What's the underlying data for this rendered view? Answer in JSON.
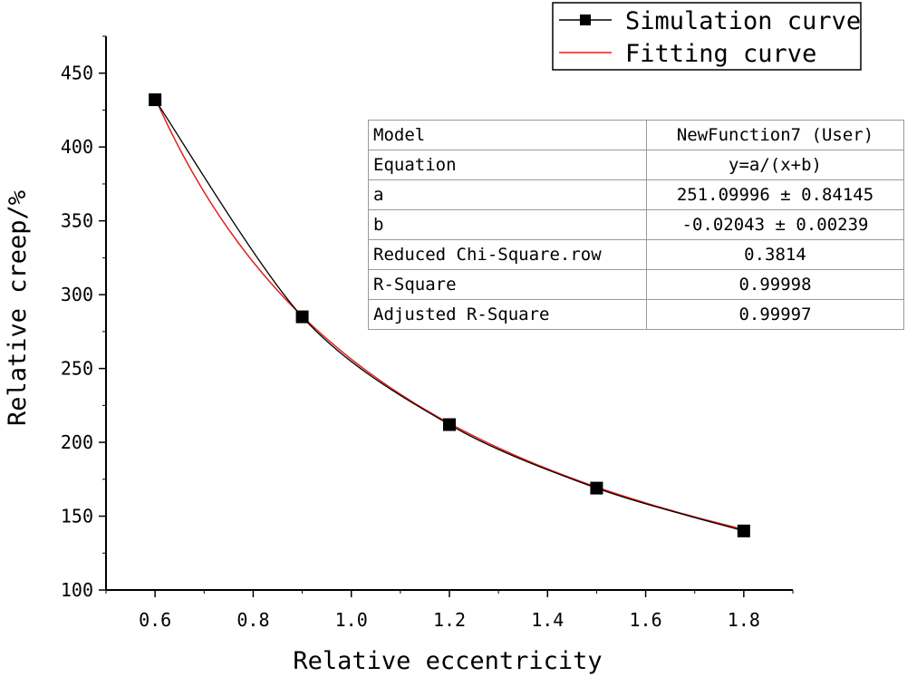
{
  "chart_data": {
    "type": "line",
    "xlabel": "Relative eccentricity",
    "ylabel": "Relative creep/%",
    "xlim": [
      0.5,
      1.9
    ],
    "ylim": [
      100,
      475
    ],
    "x_ticks": [
      "0.6",
      "0.8",
      "1.0",
      "1.2",
      "1.4",
      "1.6",
      "1.8"
    ],
    "y_ticks": [
      "100",
      "150",
      "200",
      "250",
      "300",
      "350",
      "400",
      "450"
    ],
    "grid": false,
    "legend_position": "top-right",
    "series": [
      {
        "name": "Simulation curve",
        "color": "#000000",
        "marker": "square",
        "x": [
          0.6,
          0.9,
          1.2,
          1.5,
          1.8
        ],
        "y": [
          432,
          285,
          212,
          169,
          140
        ]
      },
      {
        "name": "Fitting curve",
        "color": "#e0201b",
        "marker": "none",
        "model": "y=a/(x+b)",
        "a": 251.09996,
        "b": -0.02043,
        "x_range": [
          0.6,
          1.8
        ]
      }
    ],
    "fit_table": [
      {
        "label": "Model",
        "value": "NewFunction7 (User)"
      },
      {
        "label": "Equation",
        "value": "y=a/(x+b)"
      },
      {
        "label": "a",
        "value": "251.09996 ± 0.84145"
      },
      {
        "label": "b",
        "value": "-0.02043 ± 0.00239"
      },
      {
        "label": "Reduced Chi-Square.row",
        "value": "0.3814"
      },
      {
        "label": "R-Square",
        "value": "0.99998"
      },
      {
        "label": "Adjusted R-Square",
        "value": "0.99997"
      }
    ]
  }
}
